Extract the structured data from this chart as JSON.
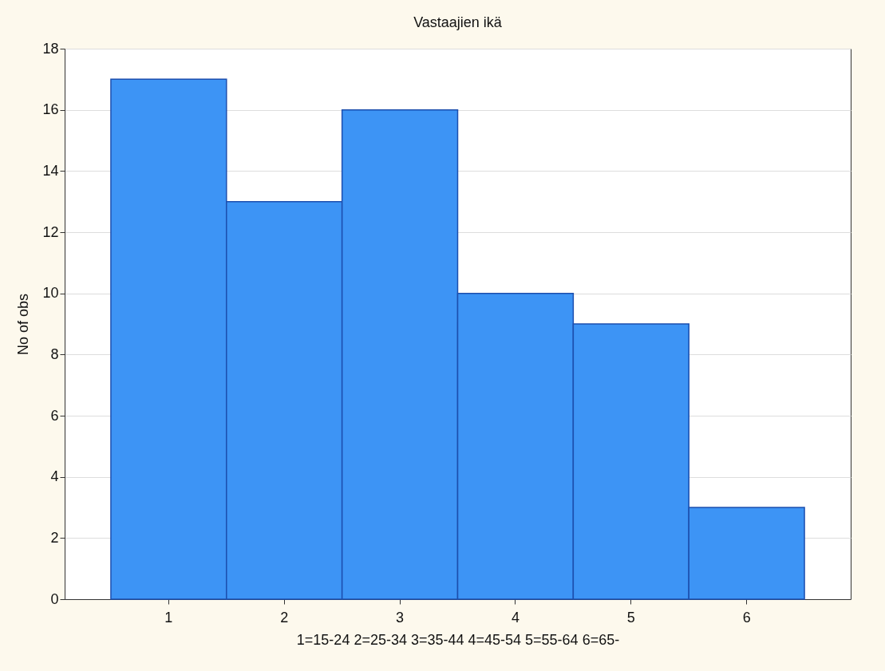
{
  "chart_data": {
    "type": "bar",
    "title": "Vastaajien ikä",
    "xlabel": "1=15-24 2=25-34 3=35-44 4=45-54 5=55-64 6=65-",
    "ylabel": "No of obs",
    "categories": [
      "1",
      "2",
      "3",
      "4",
      "5",
      "6"
    ],
    "values": [
      17,
      13,
      16,
      10,
      9,
      3
    ],
    "color": "#3d94f5",
    "ylim": [
      0,
      18
    ],
    "yticks": [
      0,
      2,
      4,
      6,
      8,
      10,
      12,
      14,
      16,
      18
    ],
    "grid": "y"
  }
}
